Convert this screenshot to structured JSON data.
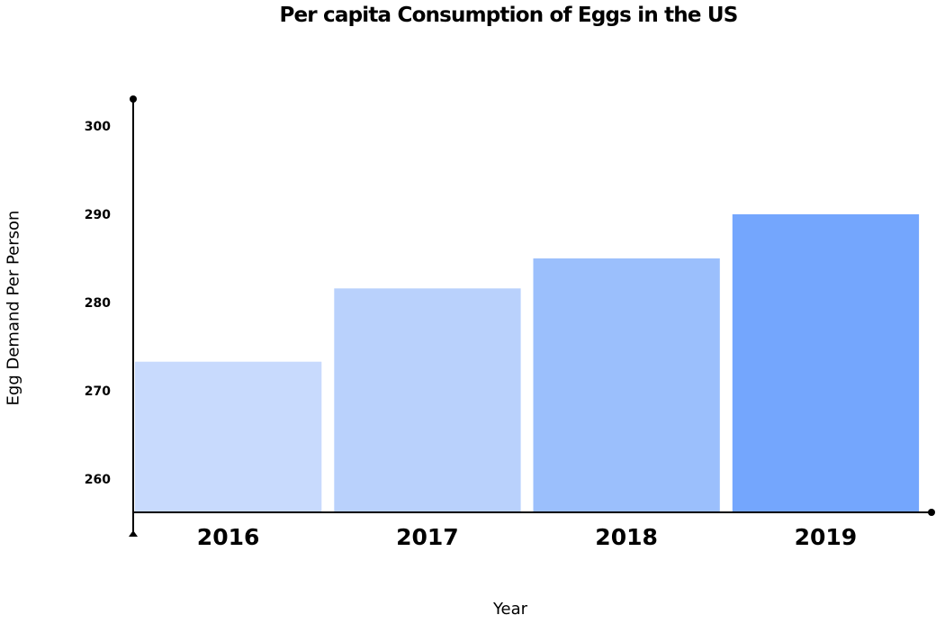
{
  "chart_data": {
    "type": "bar",
    "title": "Per capita Consumption of Eggs in the US",
    "xlabel": "Year",
    "ylabel": "Egg Demand Per Person",
    "categories": [
      "2016",
      "2017",
      "2018",
      "2019"
    ],
    "values": [
      273.3,
      281.6,
      285,
      290
    ],
    "ylim": [
      256.5,
      303
    ],
    "yticks": [
      260,
      270,
      280,
      290,
      300
    ],
    "grid": false,
    "legend": "none",
    "colors": [
      "#c8dafd",
      "#b9d1fc",
      "#9bbffc",
      "#74a6fd"
    ]
  }
}
